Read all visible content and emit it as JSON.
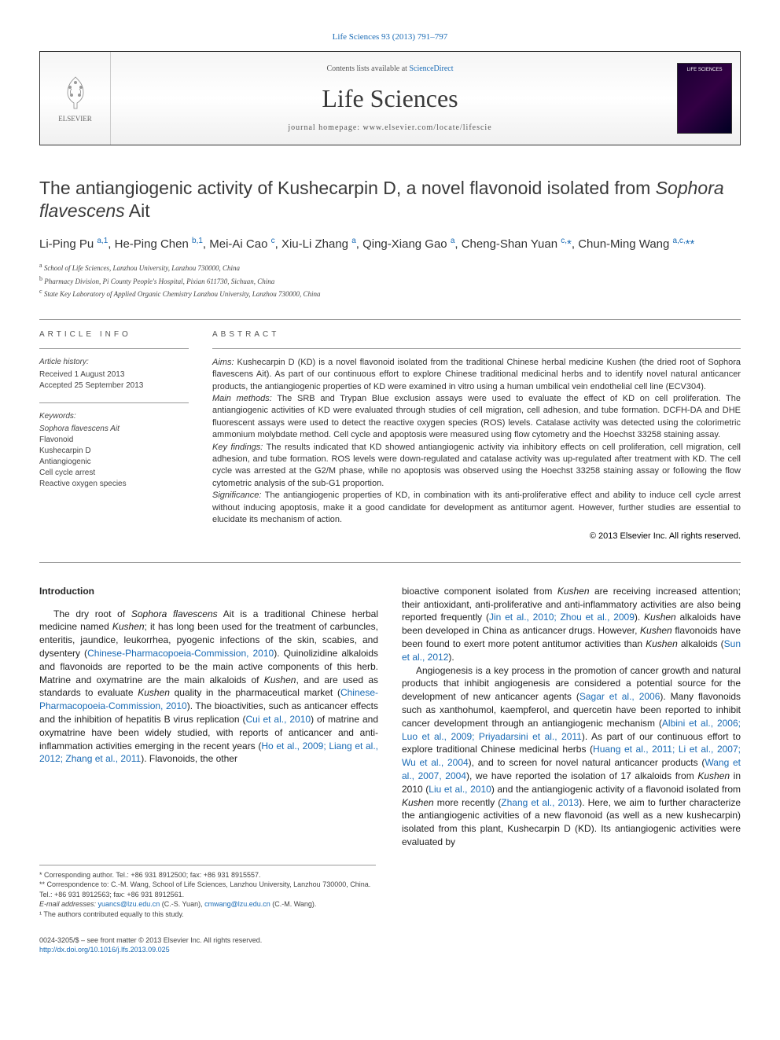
{
  "header": {
    "top_link": "Life Sciences 93 (2013) 791–797",
    "contents_prefix": "Contents lists available at ",
    "contents_link": "ScienceDirect",
    "journal_title": "Life Sciences",
    "homepage_label": "journal homepage: www.elsevier.com/locate/lifescie",
    "elsevier": "ELSEVIER",
    "cover_title": "LIFE SCIENCES"
  },
  "article": {
    "title_a": "The antiangiogenic activity of Kushecarpin D, a novel flavonoid isolated from ",
    "title_italic": "Sophora flavescens",
    "title_b": " Ait",
    "authors_html": "Li-Ping Pu <sup>a,1</sup>, He-Ping Chen <sup>b,1</sup>, Mei-Ai Cao <sup>c</sup>, Xiu-Li Zhang <sup>a</sup>, Qing-Xiang Gao <sup>a</sup>, Cheng-Shan Yuan <sup>c,</sup><span class='star'>*</span>, Chun-Ming Wang <sup>a,c,</sup><span class='star'>**</span>",
    "affiliations": {
      "a": "School of Life Sciences, Lanzhou University, Lanzhou 730000, China",
      "b": "Pharmacy Division, Pi County People's Hospital, Pixian 611730, Sichuan, China",
      "c": "State Key Laboratory of Applied Organic Chemistry Lanzhou University, Lanzhou 730000, China"
    }
  },
  "info": {
    "section_label": "article info",
    "history_label": "Article history:",
    "received": "Received 1 August 2013",
    "accepted": "Accepted 25 September 2013",
    "keywords_label": "Keywords:",
    "keywords": [
      "Sophora flavescens Ait",
      "Flavonoid",
      "Kushecarpin D",
      "Antiangiogenic",
      "Cell cycle arrest",
      "Reactive oxygen species"
    ]
  },
  "abstract": {
    "section_label": "ABSTRACT",
    "aims_label": "Aims:",
    "aims": " Kushecarpin D (KD) is a novel flavonoid isolated from the traditional Chinese herbal medicine Kushen (the dried root of Sophora flavescens Ait). As part of our continuous effort to explore Chinese traditional medicinal herbs and to identify novel natural anticancer products, the antiangiogenic properties of KD were examined in vitro using a human umbilical vein endothelial cell line (ECV304).",
    "methods_label": "Main methods:",
    "methods": " The SRB and Trypan Blue exclusion assays were used to evaluate the effect of KD on cell proliferation. The antiangiogenic activities of KD were evaluated through studies of cell migration, cell adhesion, and tube formation. DCFH-DA and DHE fluorescent assays were used to detect the reactive oxygen species (ROS) levels. Catalase activity was detected using the colorimetric ammonium molybdate method. Cell cycle and apoptosis were measured using flow cytometry and the Hoechst 33258 staining assay.",
    "findings_label": "Key findings:",
    "findings": " The results indicated that KD showed antiangiogenic activity via inhibitory effects on cell proliferation, cell migration, cell adhesion, and tube formation. ROS levels were down-regulated and catalase activity was up-regulated after treatment with KD. The cell cycle was arrested at the G2/M phase, while no apoptosis was observed using the Hoechst 33258 staining assay or following the flow cytometric analysis of the sub-G1 proportion.",
    "significance_label": "Significance:",
    "significance": " The antiangiogenic properties of KD, in combination with its anti-proliferative effect and ability to induce cell cycle arrest without inducing apoptosis, make it a good candidate for development as antitumor agent. However, further studies are essential to elucidate its mechanism of action.",
    "copyright": "© 2013 Elsevier Inc. All rights reserved."
  },
  "body": {
    "intro_heading": "Introduction",
    "left": {
      "p1a": "The dry root of ",
      "p1b": "Sophora flavescens",
      "p1c": " Ait is a traditional Chinese herbal medicine named ",
      "p1d": "Kushen",
      "p1e": "; it has long been used for the treatment of carbuncles, enteritis, jaundice, leukorrhea, pyogenic infections of the skin, scabies, and dysentery (",
      "p1ref1": "Chinese-Pharmacopoeia-Commission, 2010",
      "p1f": "). Quinolizidine alkaloids and flavonoids are reported to be the main active components of this herb. Matrine and oxymatrine are the main alkaloids of ",
      "p1g": "Kushen",
      "p1h": ", and are used as standards to evaluate ",
      "p1i": "Kushen",
      "p1j": " quality in the pharmaceutical market (",
      "p1ref2": "Chinese-Pharmacopoeia-Commission, 2010",
      "p1k": "). The bioactivities, such as anticancer effects and the inhibition of hepatitis B virus replication (",
      "p1ref3": "Cui et al., 2010",
      "p1l": ") of matrine and oxymatrine have been widely studied, with reports of anticancer and anti-inflammation activities emerging in the recent years (",
      "p1ref4": "Ho et al., 2009; Liang et al., 2012; Zhang et al., 2011",
      "p1m": "). Flavonoids, the other"
    },
    "right": {
      "p1a": "bioactive component isolated from ",
      "p1b": "Kushen",
      "p1c": " are receiving increased attention; their antioxidant, anti-proliferative and anti-inflammatory activities are also being reported frequently (",
      "p1ref1": "Jin et al., 2010; Zhou et al., 2009",
      "p1d": "). ",
      "p1e": "Kushen",
      "p1f": " alkaloids have been developed in China as anticancer drugs. However, ",
      "p1g": "Kushen",
      "p1h": " flavonoids have been found to exert more potent antitumor activities than ",
      "p1i": "Kushen",
      "p1j": " alkaloids (",
      "p1ref2": "Sun et al., 2012",
      "p1k": ").",
      "p2a": "Angiogenesis is a key process in the promotion of cancer growth and natural products that inhibit angiogenesis are considered a potential source for the development of new anticancer agents (",
      "p2ref1": "Sagar et al., 2006",
      "p2b": "). Many flavonoids such as xanthohumol, kaempferol, and quercetin have been reported to inhibit cancer development through an antiangiogenic mechanism (",
      "p2ref2": "Albini et al., 2006; Luo et al., 2009; Priyadarsini et al., 2011",
      "p2c": "). As part of our continuous effort to explore traditional Chinese medicinal herbs (",
      "p2ref3": "Huang et al., 2011; Li et al., 2007; Wu et al., 2004",
      "p2d": "), and to screen for novel natural anticancer products (",
      "p2ref4": "Wang et al., 2007, 2004",
      "p2e": "), we have reported the isolation of 17 alkaloids from ",
      "p2f": "Kushen",
      "p2g": " in 2010 (",
      "p2ref5": "Liu et al., 2010",
      "p2h": ") and the antiangiogenic activity of a flavonoid isolated from ",
      "p2i": "Kushen",
      "p2j": " more recently (",
      "p2ref6": "Zhang et al., 2013",
      "p2k": "). Here, we aim to further characterize the antiangiogenic activities of a new flavonoid (as well as a new kushecarpin) isolated from this plant, Kushecarpin D (KD). Its antiangiogenic activities were evaluated by"
    }
  },
  "footnotes": {
    "corr1": "* Corresponding author. Tel.: +86 931 8912500; fax: +86 931 8915557.",
    "corr2": "** Correspondence to: C.-M. Wang, School of Life Sciences, Lanzhou University, Lanzhou 730000, China. Tel.: +86 931 8912563; fax: +86 931 8912561.",
    "emails_label": "E-mail addresses: ",
    "email1": "yuancs@lzu.edu.cn",
    "email1_who": " (C.-S. Yuan), ",
    "email2": "cmwang@lzu.edu.cn",
    "email2_who": " (C.-M. Wang).",
    "note1": "¹ The authors contributed equally to this study."
  },
  "footer": {
    "front_matter": "0024-3205/$ – see front matter © 2013 Elsevier Inc. All rights reserved.",
    "doi": "http://dx.doi.org/10.1016/j.lfs.2013.09.025"
  },
  "colors": {
    "link": "#1a6bb5",
    "text": "#000000",
    "heading": "#3a3a3a",
    "rule": "#999999"
  }
}
